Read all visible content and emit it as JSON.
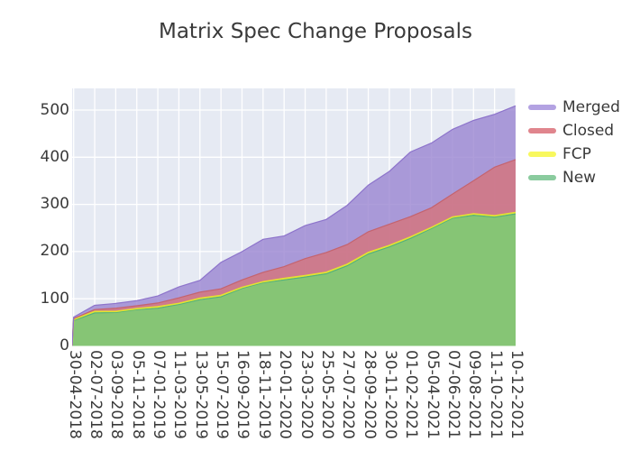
{
  "title": "Matrix Spec Change Proposals",
  "legend": {
    "items": [
      {
        "label": "Merged",
        "color": "#b3a2e2"
      },
      {
        "label": "Closed",
        "color": "#e0858d"
      },
      {
        "label": "FCP",
        "color": "#f8f85e"
      },
      {
        "label": "New",
        "color": "#8acb9e"
      }
    ]
  },
  "axes": {
    "y_ticks": [
      0,
      100,
      200,
      300,
      400,
      500
    ],
    "x_ticks": [
      "30-04-2018",
      "02-07-2018",
      "03-09-2018",
      "05-11-2018",
      "07-01-2019",
      "11-03-2019",
      "13-05-2019",
      "15-07-2019",
      "16-09-2019",
      "18-11-2019",
      "20-01-2020",
      "23-03-2020",
      "25-05-2020",
      "27-07-2020",
      "28-09-2020",
      "30-11-2020",
      "01-02-2021",
      "05-04-2021",
      "07-06-2021",
      "09-08-2021",
      "11-10-2021",
      "10-12-2021"
    ]
  },
  "chart_data": {
    "type": "area",
    "stacked": true,
    "title": "Matrix Spec Change Proposals",
    "x": [
      "30-04-2018",
      "02-07-2018",
      "03-09-2018",
      "05-11-2018",
      "07-01-2019",
      "11-03-2019",
      "13-05-2019",
      "15-07-2019",
      "16-09-2019",
      "18-11-2019",
      "20-01-2020",
      "23-03-2020",
      "25-05-2020",
      "27-07-2020",
      "28-09-2020",
      "30-11-2020",
      "01-02-2021",
      "05-04-2021",
      "07-06-2021",
      "09-08-2021",
      "11-10-2021",
      "10-12-2021"
    ],
    "series": [
      {
        "name": "New",
        "fill": "#6dbf85",
        "line": "#53b27b",
        "values": [
          54,
          70,
          71,
          77,
          80,
          88,
          98,
          104,
          122,
          134,
          140,
          146,
          153,
          170,
          195,
          210,
          228,
          249,
          271,
          277,
          273,
          280
        ]
      },
      {
        "name": "FCP",
        "fill": "#f4f326",
        "line": "#e3e330",
        "values": [
          2,
          3,
          2,
          2,
          3,
          2,
          3,
          3,
          2,
          2,
          3,
          3,
          3,
          3,
          3,
          3,
          3,
          2,
          2,
          3,
          3,
          3
        ]
      },
      {
        "name": "Closed",
        "fill": "#d6737b",
        "line": "#c4636e",
        "values": [
          2,
          4,
          7,
          6,
          8,
          12,
          13,
          14,
          16,
          20,
          25,
          36,
          42,
          42,
          44,
          45,
          43,
          42,
          49,
          70,
          103,
          112
        ]
      },
      {
        "name": "Merged",
        "fill": "#9a85d1",
        "line": "#8d74cb",
        "values": [
          3,
          9,
          10,
          11,
          15,
          23,
          25,
          56,
          60,
          70,
          65,
          70,
          70,
          83,
          99,
          112,
          137,
          137,
          137,
          128,
          112,
          114
        ]
      }
    ],
    "ylim": [
      0,
      546
    ],
    "xlabel": "",
    "ylabel": "",
    "grid": true,
    "gridline_color": "#ffffff",
    "plot_bg": "#e6eaf3",
    "legend_position": "outside upper right"
  }
}
